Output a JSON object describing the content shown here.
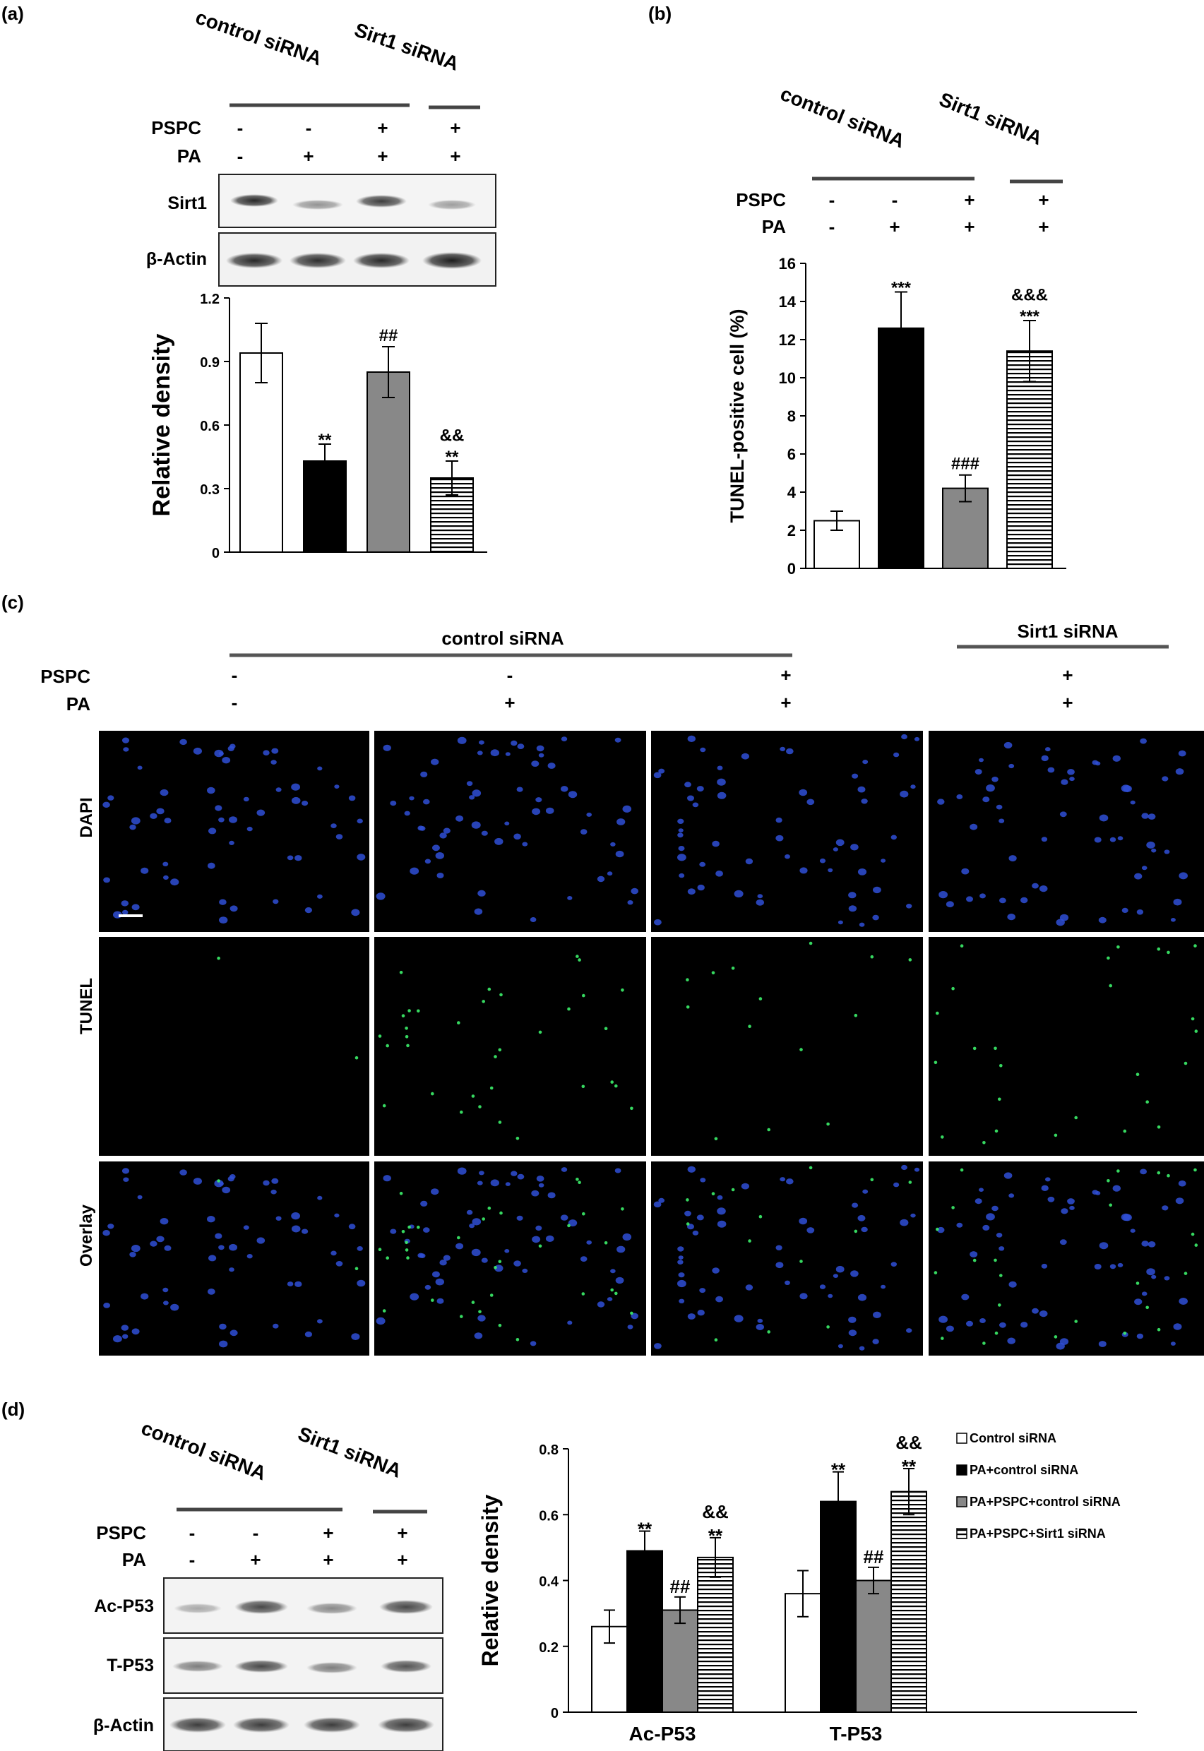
{
  "panel_labels": {
    "a": "(a)",
    "b": "(b)",
    "c": "(c)",
    "d": "(d)"
  },
  "groups": {
    "control": "control siRNA",
    "sirt1": "Sirt1 siRNA"
  },
  "treatments": {
    "pspc_label": "PSPC",
    "pa_label": "PA",
    "pspc": [
      "-",
      "-",
      "+",
      "+"
    ],
    "pa": [
      "-",
      "+",
      "+",
      "+"
    ]
  },
  "blots_a": [
    "Sirt1",
    "β-Actin"
  ],
  "blots_d": [
    "Ac-P53",
    "T-P53",
    "β-Actin"
  ],
  "micro_rows": [
    "DAPI",
    "TUNEL",
    "Overlay"
  ],
  "fills": [
    "#ffffff",
    "#000000",
    "#888888",
    "stripes"
  ],
  "chart_data": [
    {
      "id": "a",
      "type": "bar",
      "ylabel": "Relative density",
      "ylim": [
        0,
        1.2
      ],
      "yticks": [
        "0",
        "0.3",
        "0.6",
        "0.9",
        "1.2"
      ],
      "values": [
        0.94,
        0.43,
        0.85,
        0.35
      ],
      "errors": [
        0.14,
        0.08,
        0.12,
        0.08
      ],
      "annotations": [
        [],
        [
          "**"
        ],
        [
          "##"
        ],
        [
          "**",
          "&&"
        ]
      ]
    },
    {
      "id": "b",
      "type": "bar",
      "ylabel": "TUNEL-positive cell (%)",
      "ylim": [
        0,
        16
      ],
      "yticks": [
        "0",
        "2",
        "4",
        "6",
        "8",
        "10",
        "12",
        "14",
        "16"
      ],
      "values": [
        2.5,
        12.6,
        4.2,
        11.4
      ],
      "errors": [
        0.5,
        1.9,
        0.7,
        1.6
      ],
      "annotations": [
        [],
        [
          "***"
        ],
        [
          "###"
        ],
        [
          "***",
          "&&&"
        ]
      ]
    },
    {
      "id": "d",
      "type": "bar",
      "ylabel": "Relative density",
      "ylim": [
        0,
        0.8
      ],
      "yticks": [
        "0",
        "0.2",
        "0.4",
        "0.6",
        "0.8"
      ],
      "categories": [
        "Ac-P53",
        "T-P53"
      ],
      "series": [
        {
          "name": "Control siRNA",
          "values": [
            0.26,
            0.36
          ],
          "errors": [
            0.05,
            0.07
          ]
        },
        {
          "name": "PA+control siRNA",
          "values": [
            0.49,
            0.64
          ],
          "errors": [
            0.06,
            0.09
          ]
        },
        {
          "name": "PA+PSPC+control siRNA",
          "values": [
            0.31,
            0.4
          ],
          "errors": [
            0.04,
            0.04
          ]
        },
        {
          "name": "PA+PSPC+Sirt1 siRNA",
          "values": [
            0.47,
            0.67
          ],
          "errors": [
            0.06,
            0.07
          ]
        }
      ],
      "annotations": [
        [
          [],
          [
            "**"
          ],
          [
            "##"
          ],
          [
            "**",
            "&&"
          ]
        ],
        [
          [],
          [
            "**"
          ],
          [
            "##"
          ],
          [
            "**",
            "&&"
          ]
        ]
      ],
      "legend_position": "top-right"
    }
  ]
}
